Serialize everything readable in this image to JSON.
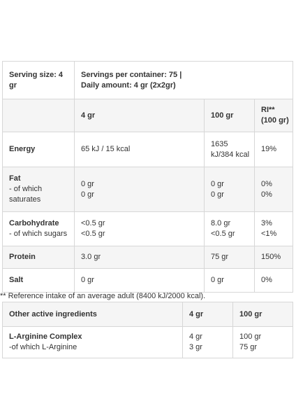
{
  "nutrition": {
    "serving_size": "Serving size: 4",
    "serving_size_unit": "gr",
    "servings_per_container": "Servings per container: 75 |",
    "daily_amount": "Daily amount: 4 gr (2x2gr)",
    "header": {
      "col_4gr": "4 gr",
      "col_100gr": "100 gr",
      "col_ri_line1": "RI**",
      "col_ri_line2": "(100 gr)"
    },
    "rows": [
      {
        "name": "Energy",
        "sub": "",
        "sub2": "",
        "v4": "65 kJ / 15 kcal",
        "v4b": "",
        "v100": "1635",
        "v100b": "kJ/384 kcal",
        "ri": "19%",
        "rib": ""
      },
      {
        "name": "Fat",
        "sub": "- of which",
        "sub2": "saturates",
        "v4": "0 gr",
        "v4b": "0 gr",
        "v100": "0 gr",
        "v100b": "0 gr",
        "ri": "0%",
        "rib": "0%"
      },
      {
        "name": "Carbohydrate",
        "sub": "- of which sugars",
        "sub2": "",
        "v4": "<0.5 gr",
        "v4b": "<0.5 gr",
        "v100": "8.0 gr",
        "v100b": "<0.5 gr",
        "ri": "3%",
        "rib": "<1%"
      },
      {
        "name": "Protein",
        "sub": "",
        "sub2": "",
        "v4": "3.0 gr",
        "v4b": "",
        "v100": "75 gr",
        "v100b": "",
        "ri": "150%",
        "rib": ""
      },
      {
        "name": "Salt",
        "sub": "",
        "sub2": "",
        "v4": "0 gr",
        "v4b": "",
        "v100": "0 gr",
        "v100b": "",
        "ri": "0%",
        "rib": ""
      }
    ],
    "footnote": "** Reference intake of an average adult (8400 kJ/2000 kcal)."
  },
  "active": {
    "header": {
      "label": "Other active ingredients",
      "col_4gr": "4 gr",
      "col_100gr": "100 gr"
    },
    "rows": [
      {
        "name": "L-Arginine Complex",
        "sub": "-of which L-Arginine",
        "v4": "4 gr",
        "v4b": "3 gr",
        "v100": "100 gr",
        "v100b": "75 gr"
      }
    ]
  }
}
